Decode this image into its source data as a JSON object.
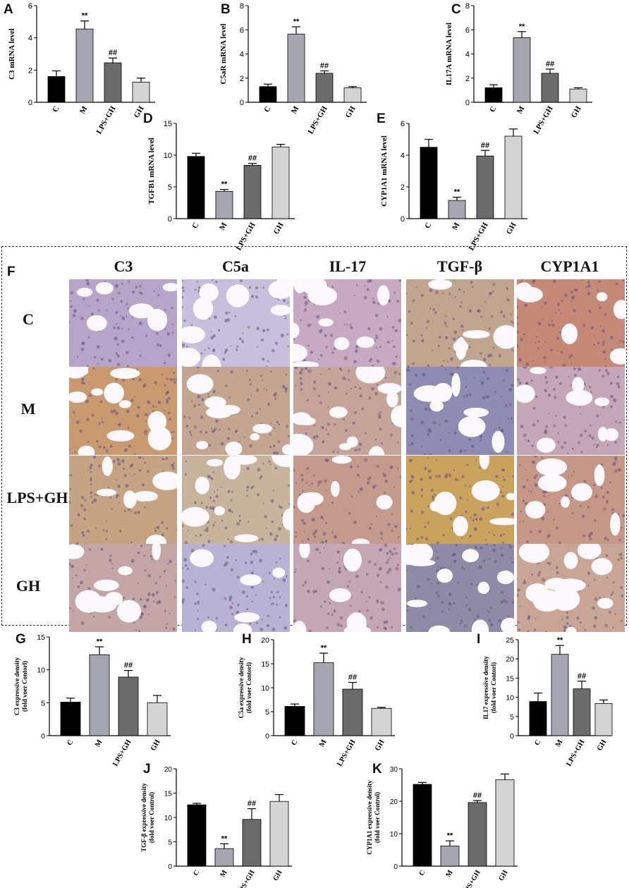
{
  "panel_letters": [
    "A",
    "B",
    "C",
    "D",
    "E",
    "F",
    "G",
    "H",
    "I",
    "J",
    "K"
  ],
  "chart_data": [
    {
      "id": "A",
      "type": "bar",
      "categories": [
        "C",
        "M",
        "LPS+GH",
        "GH"
      ],
      "values": [
        1.6,
        4.55,
        2.45,
        1.25
      ],
      "errors": [
        0.35,
        0.5,
        0.3,
        0.25
      ],
      "annotations": [
        "",
        "**",
        "##",
        ""
      ],
      "ylabel": "C3 mRNA level",
      "ylim": [
        0,
        6
      ],
      "yticks": [
        0,
        2,
        4,
        6
      ],
      "colors": [
        "#000000",
        "#a6a6b0",
        "#6b6b6b",
        "#d4d4d4"
      ]
    },
    {
      "id": "B",
      "type": "bar",
      "categories": [
        "C",
        "M",
        "LPS+GH",
        "GH"
      ],
      "values": [
        1.3,
        5.65,
        2.4,
        1.2
      ],
      "errors": [
        0.2,
        0.6,
        0.2,
        0.1
      ],
      "annotations": [
        "",
        "**",
        "##",
        ""
      ],
      "ylabel": "C5aR mRNA level",
      "ylim": [
        0,
        8
      ],
      "yticks": [
        0,
        2,
        4,
        6,
        8
      ],
      "colors": [
        "#000000",
        "#a6a6b0",
        "#6b6b6b",
        "#d4d4d4"
      ]
    },
    {
      "id": "C",
      "type": "bar",
      "categories": [
        "C",
        "M",
        "LPS+GH",
        "GH"
      ],
      "values": [
        1.2,
        5.35,
        2.4,
        1.1
      ],
      "errors": [
        0.25,
        0.5,
        0.35,
        0.1
      ],
      "annotations": [
        "",
        "**",
        "##",
        ""
      ],
      "ylabel": "IL17A mRNA level",
      "ylim": [
        0,
        8
      ],
      "yticks": [
        0,
        2,
        4,
        6,
        8
      ],
      "colors": [
        "#000000",
        "#a6a6b0",
        "#6b6b6b",
        "#d4d4d4"
      ]
    },
    {
      "id": "D",
      "type": "bar",
      "categories": [
        "C",
        "M",
        "LPS+GH",
        "GH"
      ],
      "values": [
        9.8,
        4.3,
        8.4,
        11.3
      ],
      "errors": [
        0.5,
        0.3,
        0.3,
        0.4
      ],
      "annotations": [
        "",
        "**",
        "##",
        ""
      ],
      "ylabel": "TGFB1 mRNA level",
      "ylim": [
        0,
        15
      ],
      "yticks": [
        0,
        5,
        10,
        15
      ],
      "colors": [
        "#000000",
        "#a6a6b0",
        "#6b6b6b",
        "#d4d4d4"
      ]
    },
    {
      "id": "E",
      "type": "bar",
      "categories": [
        "C",
        "M",
        "LPS+GH",
        "GH"
      ],
      "values": [
        4.5,
        1.15,
        3.95,
        5.2
      ],
      "errors": [
        0.5,
        0.2,
        0.35,
        0.45
      ],
      "annotations": [
        "",
        "**",
        "##",
        ""
      ],
      "ylabel": "CYP1A1 mRNA level",
      "ylim": [
        0,
        6
      ],
      "yticks": [
        0,
        2,
        4,
        6
      ],
      "colors": [
        "#000000",
        "#a6a6b0",
        "#6b6b6b",
        "#d4d4d4"
      ]
    },
    {
      "id": "G",
      "type": "bar",
      "categories": [
        "C",
        "M",
        "LPS+GH",
        "GH"
      ],
      "values": [
        5.1,
        12.3,
        8.9,
        5.0
      ],
      "errors": [
        0.6,
        1.2,
        1.0,
        1.1
      ],
      "annotations": [
        "",
        "**",
        "##",
        ""
      ],
      "ylabel": "C3 expressive density\n(fold voer Contorl)",
      "ylim": [
        0,
        15
      ],
      "yticks": [
        0,
        5,
        10,
        15
      ],
      "colors": [
        "#000000",
        "#a6a6b0",
        "#6b6b6b",
        "#d4d4d4"
      ]
    },
    {
      "id": "H",
      "type": "bar",
      "categories": [
        "C",
        "M",
        "LPS+GH",
        "GH"
      ],
      "values": [
        6.1,
        15.2,
        9.7,
        5.7
      ],
      "errors": [
        0.5,
        2.0,
        1.4,
        0.2
      ],
      "annotations": [
        "",
        "**",
        "##",
        ""
      ],
      "ylabel": "C5a expressive density\n(fold voer Contorl)",
      "ylim": [
        0,
        20
      ],
      "yticks": [
        0,
        5,
        10,
        15,
        20
      ],
      "colors": [
        "#000000",
        "#a6a6b0",
        "#6b6b6b",
        "#d4d4d4"
      ]
    },
    {
      "id": "I",
      "type": "bar",
      "categories": [
        "C",
        "M",
        "LPS+GH",
        "GH"
      ],
      "values": [
        8.9,
        21.2,
        12.2,
        8.4
      ],
      "errors": [
        2.2,
        2.3,
        2.0,
        0.9
      ],
      "annotations": [
        "",
        "**",
        "##",
        ""
      ],
      "ylabel": "IL17 expressive density\n(fold voer Contorl)",
      "ylim": [
        0,
        25
      ],
      "yticks": [
        0,
        5,
        10,
        15,
        20,
        25
      ],
      "colors": [
        "#000000",
        "#a6a6b0",
        "#6b6b6b",
        "#d4d4d4"
      ]
    },
    {
      "id": "J",
      "type": "bar",
      "categories": [
        "C",
        "M",
        "LPS+GH",
        "GH"
      ],
      "values": [
        12.6,
        3.6,
        9.6,
        13.3
      ],
      "errors": [
        0.3,
        1.0,
        2.2,
        1.4
      ],
      "annotations": [
        "",
        "**",
        "##",
        ""
      ],
      "ylabel": "TGF-β expressive density\n(fold voer Control)",
      "ylim": [
        0,
        20
      ],
      "yticks": [
        0,
        5,
        10,
        15,
        20
      ],
      "colors": [
        "#000000",
        "#a6a6b0",
        "#6b6b6b",
        "#d4d4d4"
      ]
    },
    {
      "id": "K",
      "type": "bar",
      "categories": [
        "C",
        "M",
        "LPS+GH",
        "GH"
      ],
      "values": [
        25.2,
        6.2,
        19.6,
        26.6
      ],
      "errors": [
        0.6,
        1.6,
        0.6,
        1.8
      ],
      "annotations": [
        "",
        "**",
        "##",
        ""
      ],
      "ylabel": "CYP1A1 expressive density\n(fold voer Control)",
      "ylim": [
        0,
        30
      ],
      "yticks": [
        0,
        10,
        20,
        30
      ],
      "colors": [
        "#000000",
        "#a6a6b0",
        "#6b6b6b",
        "#d4d4d4"
      ]
    }
  ],
  "ihc": {
    "columns": [
      "C3",
      "C5a",
      "IL-17",
      "TGF-β",
      "CYP1A1"
    ],
    "rows": [
      "C",
      "M",
      "LPS+GH",
      "GH"
    ],
    "tissue_colors": [
      [
        "#b7a4c9",
        "#c8bfdc",
        "#c7a9c2",
        "#c1a58e",
        "#c58a77"
      ],
      [
        "#c99a6f",
        "#c4a58f",
        "#c7a49a",
        "#8f8cb3",
        "#c5a6b7"
      ],
      [
        "#c5a383",
        "#c8b39d",
        "#c39a8c",
        "#c9a25e",
        "#c49787"
      ],
      [
        "#c4a6a7",
        "#b8b2d4",
        "#c5a6b3",
        "#8f8ba7",
        "#c8a594"
      ]
    ]
  }
}
